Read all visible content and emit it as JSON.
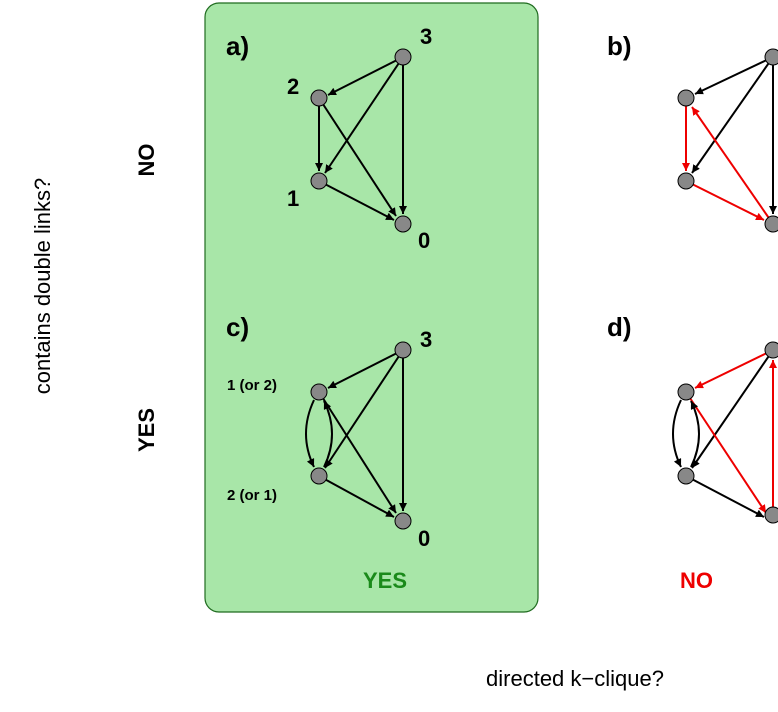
{
  "axes": {
    "y_label": "contains double links?",
    "x_label": "directed k−clique?"
  },
  "rows": {
    "top": "NO",
    "bottom": "YES"
  },
  "columns": {
    "left": {
      "label": "YES",
      "color": "#1a8a1a"
    },
    "right": {
      "label": "NO",
      "color": "#ee0000"
    }
  },
  "highlight_color": "#a8e6a8",
  "panels": {
    "a": {
      "letter": "a)",
      "nodes": {
        "n3": "3",
        "n2": "2",
        "n1": "1",
        "n0": "0"
      }
    },
    "b": {
      "letter": "b)"
    },
    "c": {
      "letter": "c)",
      "nodes": {
        "n3": "3",
        "n2": "1 (or 2)",
        "n1": "2 (or 1)",
        "n0": "0"
      }
    },
    "d": {
      "letter": "d)"
    }
  },
  "colors": {
    "edge": "#000000",
    "red_edge": "#ee0000",
    "node": "#888888"
  }
}
